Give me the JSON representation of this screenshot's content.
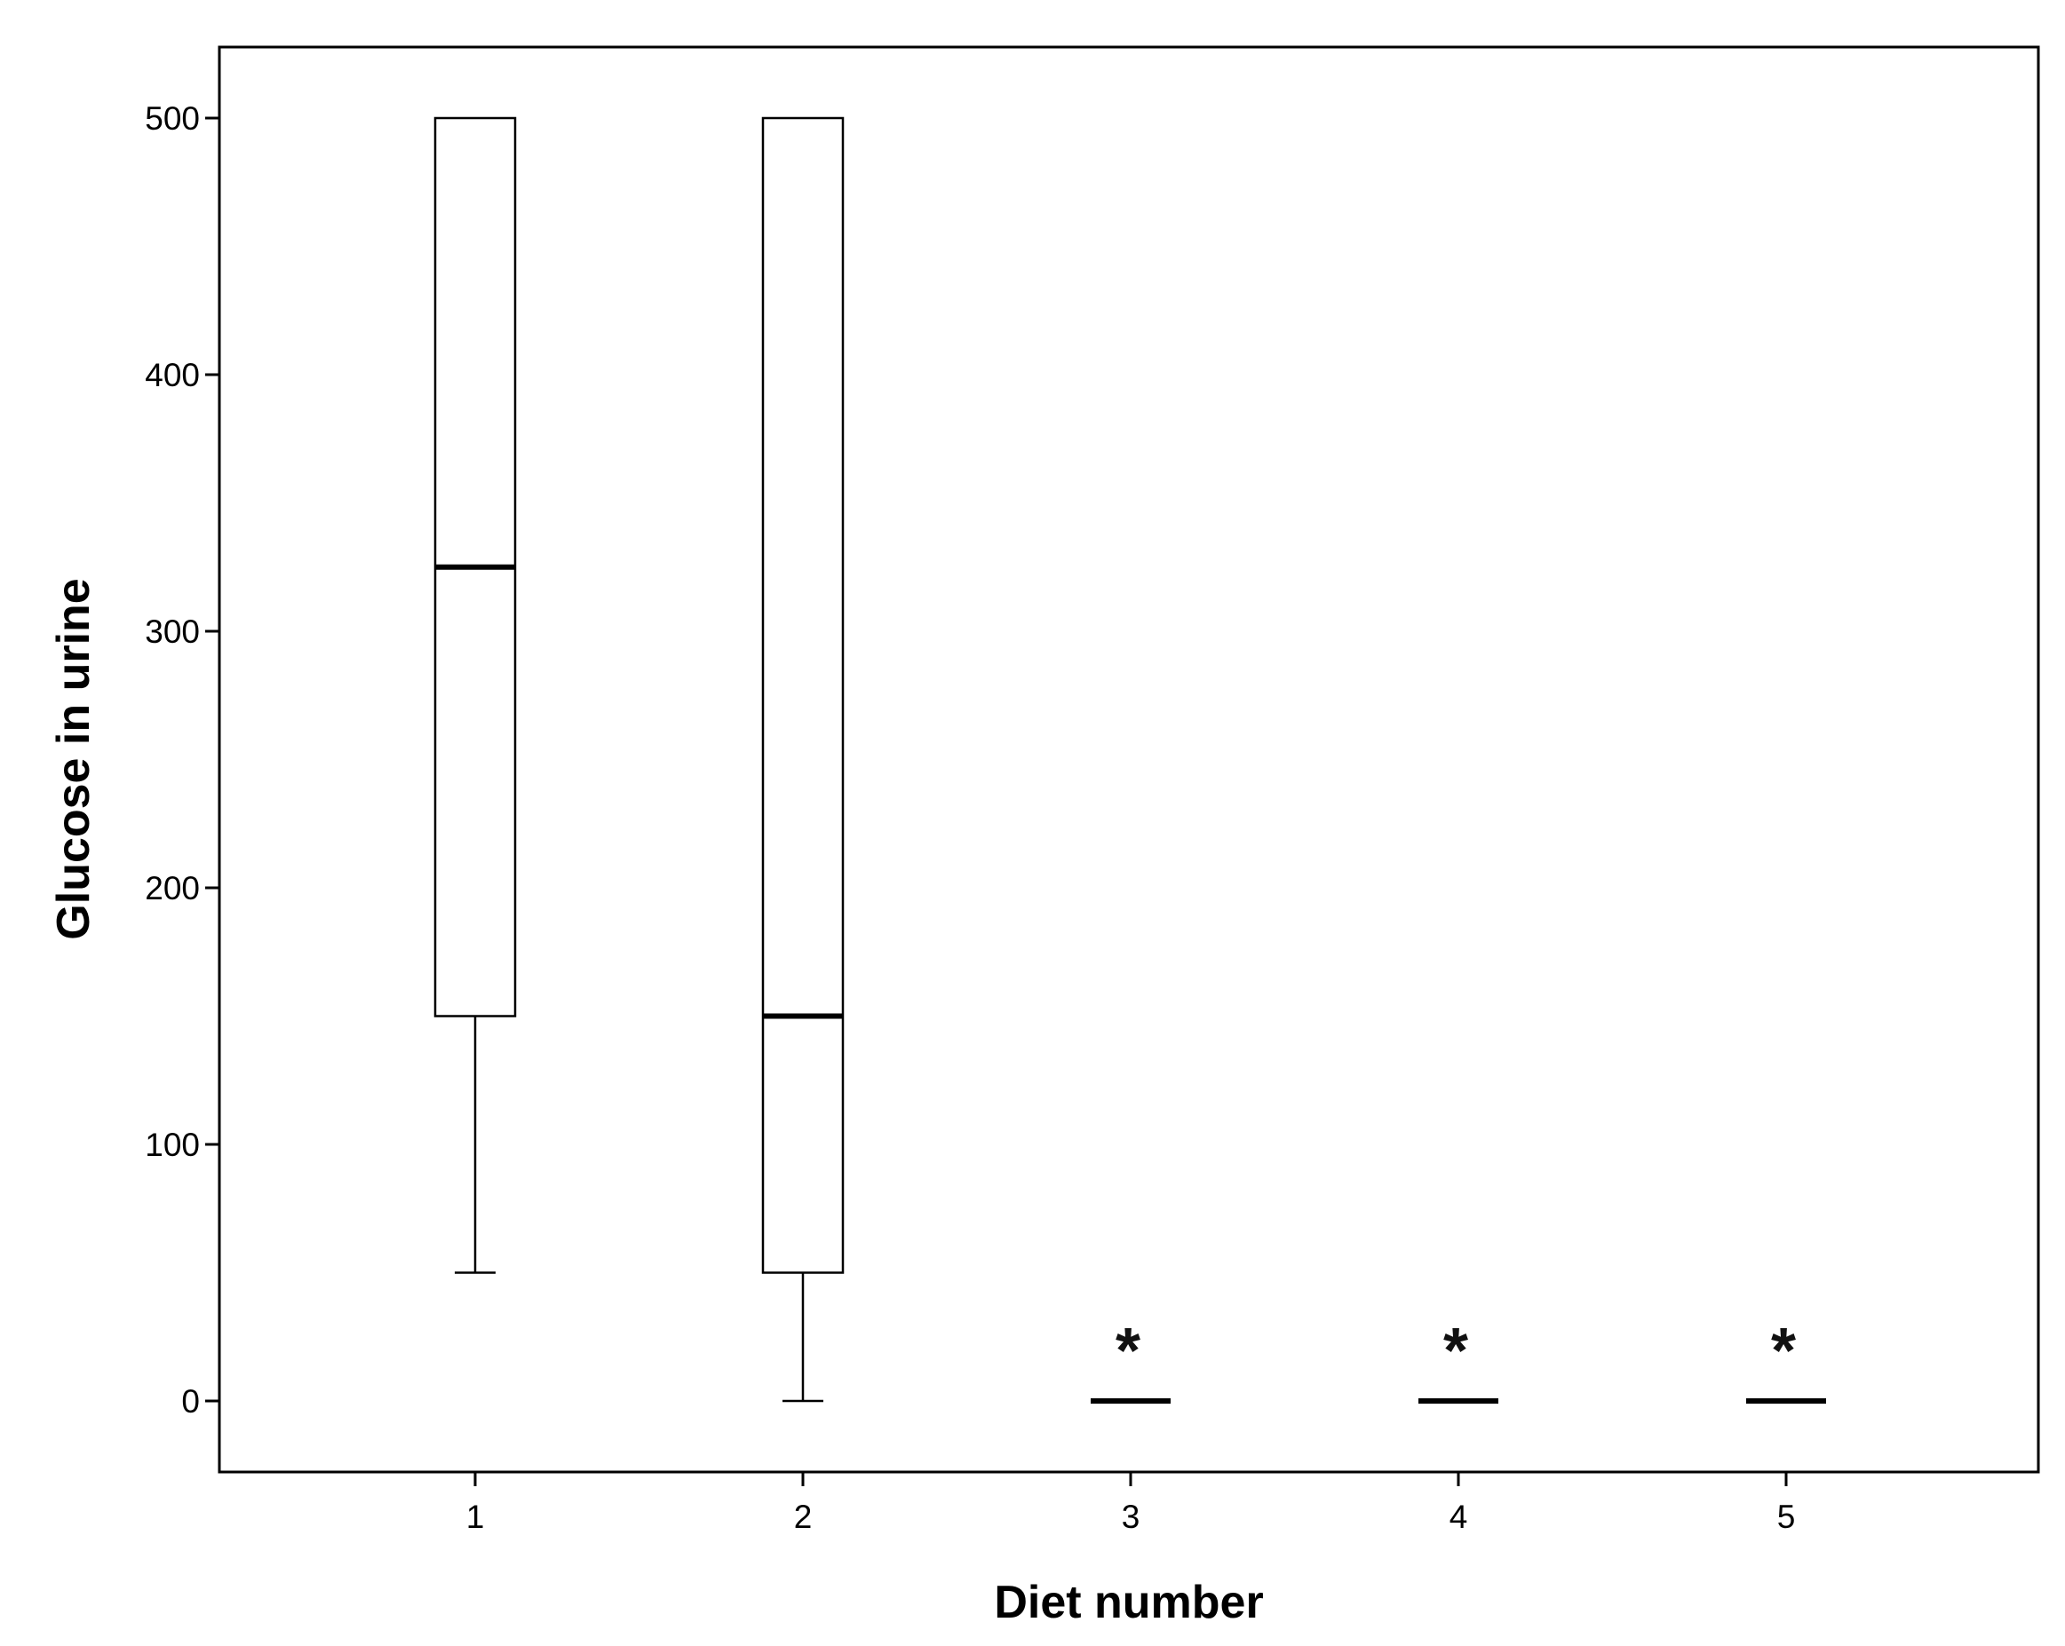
{
  "chart_data": {
    "type": "boxplot",
    "title": "",
    "xlabel": "Diet number",
    "ylabel": "Glucose in urine",
    "categories": [
      "1",
      "2",
      "3",
      "4",
      "5"
    ],
    "ylim": [
      -28,
      528
    ],
    "yticks": [
      0,
      100,
      200,
      300,
      400,
      500
    ],
    "grid": false,
    "boxes": [
      {
        "category": "1",
        "whisker_low": 50,
        "q1": 150,
        "median": 325,
        "q3": 500,
        "whisker_high": 500,
        "outliers": []
      },
      {
        "category": "2",
        "whisker_low": 0,
        "q1": 50,
        "median": 150,
        "q3": 500,
        "whisker_high": 500,
        "outliers": []
      },
      {
        "category": "3",
        "whisker_low": 0,
        "q1": 0,
        "median": 0,
        "q3": 0,
        "whisker_high": 0,
        "outliers": [
          25
        ]
      },
      {
        "category": "4",
        "whisker_low": 0,
        "q1": 0,
        "median": 0,
        "q3": 0,
        "whisker_high": 0,
        "outliers": [
          25
        ]
      },
      {
        "category": "5",
        "whisker_low": 0,
        "q1": 0,
        "median": 0,
        "q3": 0,
        "whisker_high": 0,
        "outliers": [
          25
        ]
      }
    ],
    "outlier_symbol": "*"
  }
}
